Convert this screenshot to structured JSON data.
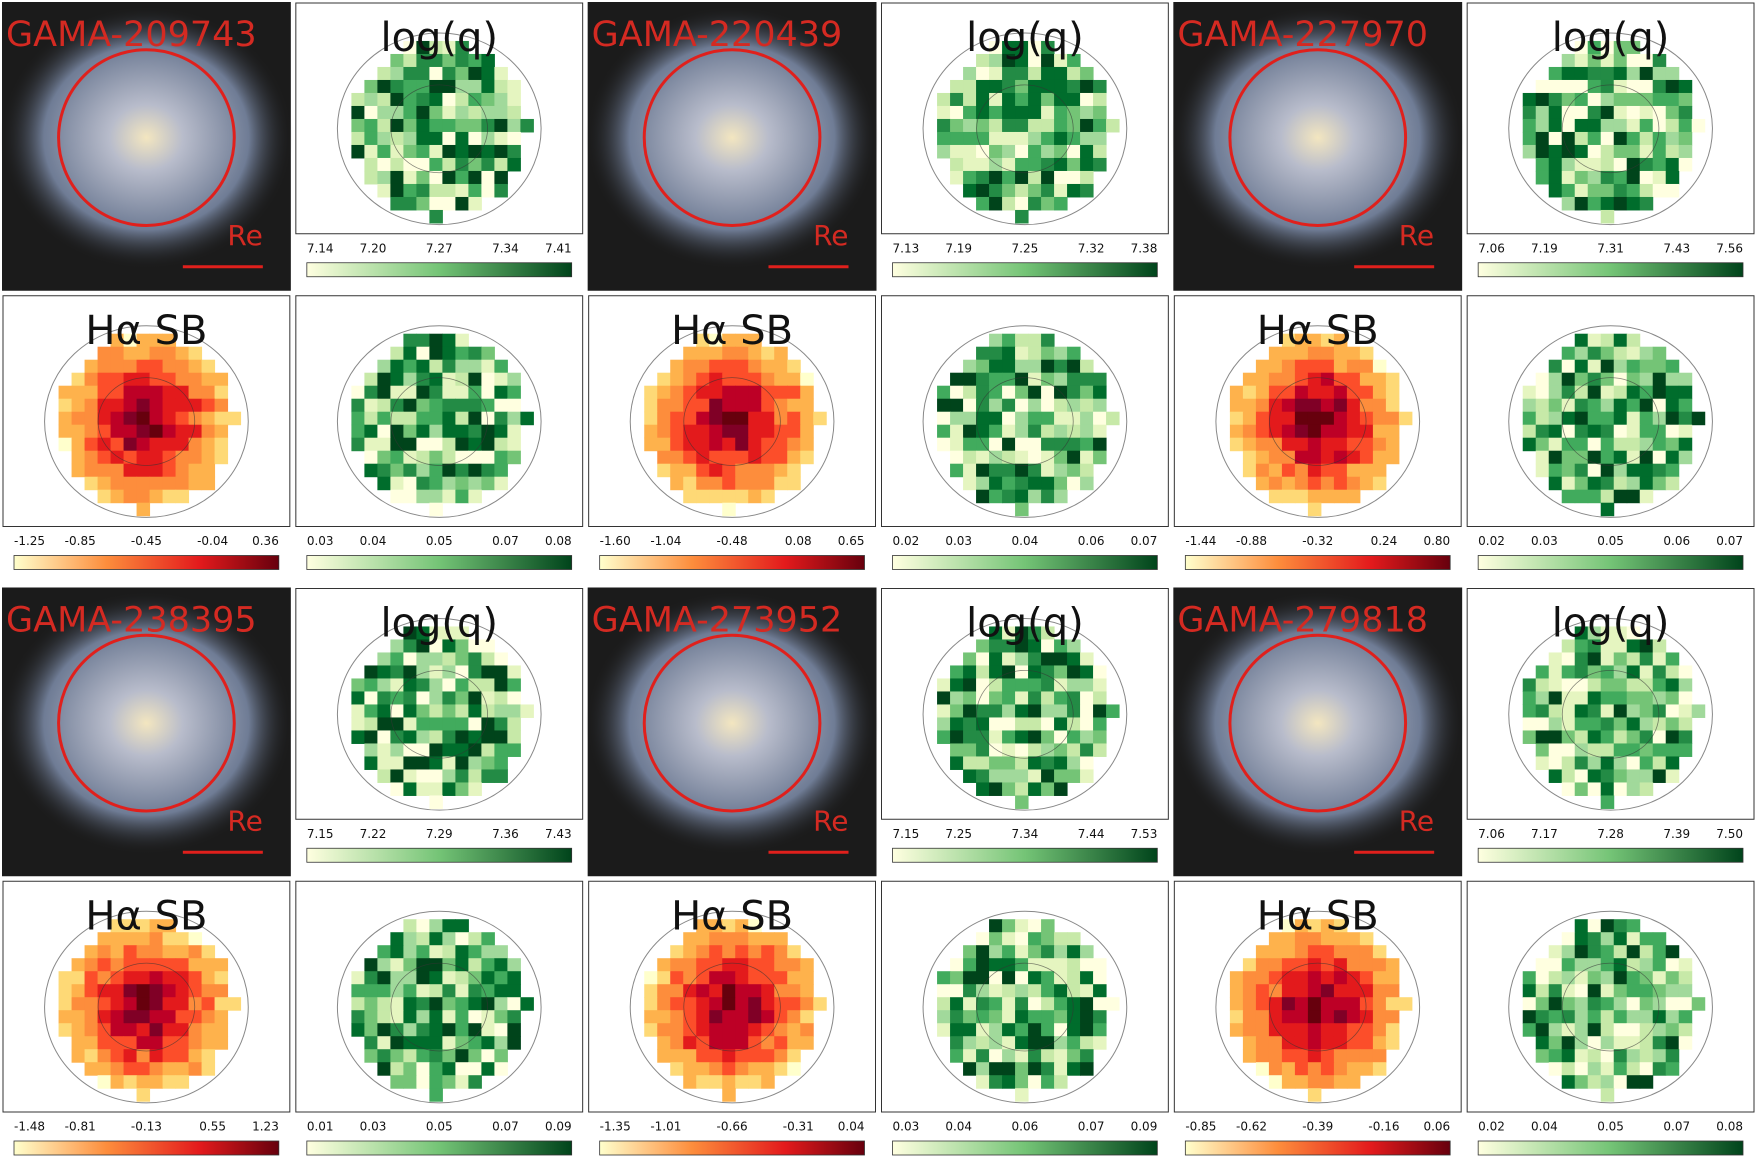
{
  "galaxies": [
    {
      "id": "GAMA-209743",
      "scale_label": "Re",
      "logq": {
        "title": "log(q)",
        "ticks": [
          "7.14",
          "7.20",
          "7.27",
          "7.34",
          "7.41"
        ]
      },
      "ha": {
        "title": "Hα SB",
        "ticks": [
          "-1.25",
          "-0.85",
          "-0.45",
          "-0.04",
          "0.36"
        ]
      },
      "err": {
        "ticks": [
          "0.03",
          "0.04",
          "0.05",
          "0.07",
          "0.08"
        ]
      }
    },
    {
      "id": "GAMA-220439",
      "scale_label": "Re",
      "logq": {
        "title": "log(q)",
        "ticks": [
          "7.13",
          "7.19",
          "7.25",
          "7.32",
          "7.38"
        ]
      },
      "ha": {
        "title": "Hα SB",
        "ticks": [
          "-1.60",
          "-1.04",
          "-0.48",
          "0.08",
          "0.65"
        ]
      },
      "err": {
        "ticks": [
          "0.02",
          "0.03",
          "0.04",
          "0.06",
          "0.07"
        ]
      }
    },
    {
      "id": "GAMA-227970",
      "scale_label": "Re",
      "logq": {
        "title": "log(q)",
        "ticks": [
          "7.06",
          "7.19",
          "7.31",
          "7.43",
          "7.56"
        ]
      },
      "ha": {
        "title": "Hα SB",
        "ticks": [
          "-1.44",
          "-0.88",
          "-0.32",
          "0.24",
          "0.80"
        ]
      },
      "err": {
        "ticks": [
          "0.02",
          "0.03",
          "0.05",
          "0.06",
          "0.07"
        ]
      }
    },
    {
      "id": "GAMA-238395",
      "scale_label": "Re",
      "logq": {
        "title": "log(q)",
        "ticks": [
          "7.15",
          "7.22",
          "7.29",
          "7.36",
          "7.43"
        ]
      },
      "ha": {
        "title": "Hα SB",
        "ticks": [
          "-1.48",
          "-0.81",
          "-0.13",
          "0.55",
          "1.23"
        ]
      },
      "err": {
        "ticks": [
          "0.01",
          "0.03",
          "0.05",
          "0.07",
          "0.09"
        ]
      }
    },
    {
      "id": "GAMA-273952",
      "scale_label": "Re",
      "logq": {
        "title": "log(q)",
        "ticks": [
          "7.15",
          "7.25",
          "7.34",
          "7.44",
          "7.53"
        ]
      },
      "ha": {
        "title": "Hα SB",
        "ticks": [
          "-1.35",
          "-1.01",
          "-0.66",
          "-0.31",
          "0.04"
        ]
      },
      "err": {
        "ticks": [
          "0.03",
          "0.04",
          "0.06",
          "0.07",
          "0.09"
        ]
      }
    },
    {
      "id": "GAMA-279818",
      "scale_label": "Re",
      "logq": {
        "title": "log(q)",
        "ticks": [
          "7.06",
          "7.17",
          "7.28",
          "7.39",
          "7.50"
        ]
      },
      "ha": {
        "title": "Hα SB",
        "ticks": [
          "-0.85",
          "-0.62",
          "-0.39",
          "-0.16",
          "0.06"
        ]
      },
      "err": {
        "ticks": [
          "0.02",
          "0.04",
          "0.05",
          "0.07",
          "0.08"
        ]
      }
    }
  ]
}
